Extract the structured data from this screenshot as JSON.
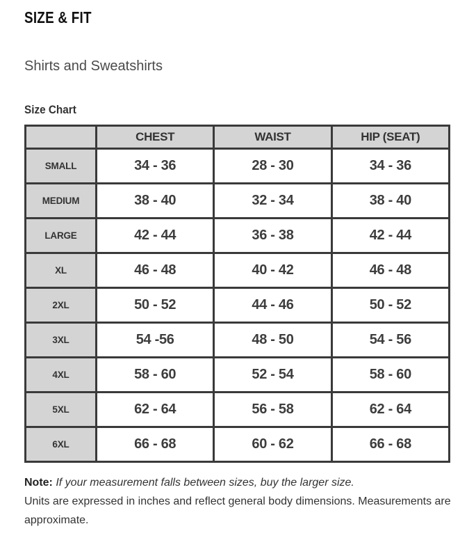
{
  "header": {
    "title": "SIZE & FIT",
    "subtitle": "Shirts and Sweatshirts",
    "section_label": "Size Chart"
  },
  "chart_data": {
    "type": "table",
    "title": "Size Chart",
    "columns": [
      "",
      "CHEST",
      "WAIST",
      "HIP (SEAT)"
    ],
    "row_header_field": "size",
    "rows": [
      [
        "SMALL",
        "34 - 36",
        "28 - 30",
        "34 - 36"
      ],
      [
        "MEDIUM",
        "38 - 40",
        "32 - 34",
        "38 - 40"
      ],
      [
        "LARGE",
        "42 - 44",
        "36 - 38",
        "42 - 44"
      ],
      [
        "XL",
        "46 - 48",
        "40 - 42",
        "46 - 48"
      ],
      [
        "2XL",
        "50 - 52",
        "44 - 46",
        "50 - 52"
      ],
      [
        "3XL",
        "54 -56",
        "48 - 50",
        "54 - 56"
      ],
      [
        "4XL",
        "58 - 60",
        "52 - 54",
        "58 - 60"
      ],
      [
        "5XL",
        "62 - 64",
        "56 - 58",
        "62 - 64"
      ],
      [
        "6XL",
        "66 - 68",
        "60 - 62",
        "66 - 68"
      ]
    ],
    "units": "inches"
  },
  "notes": {
    "label": "Note:",
    "between_sizes": "If your measurement falls between sizes, buy the larger size.",
    "units": "Units are expressed in inches and reflect general body dimensions. Measurements are approximate."
  },
  "colors": {
    "table_border": "#3a3a3a",
    "header_fill": "#d4d4d4",
    "title_text": "#111111",
    "body_text": "#3d3d3d"
  }
}
